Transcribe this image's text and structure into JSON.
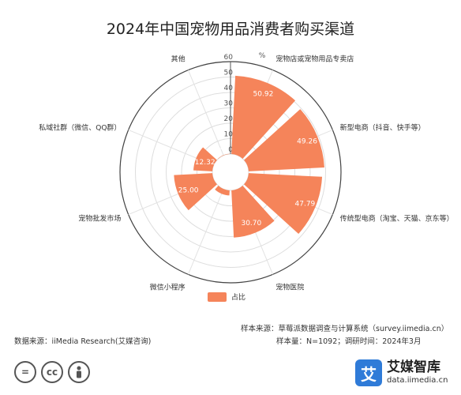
{
  "title": "2024年中国宠物用品消费者购买渠道",
  "chart_data": {
    "type": "polar-bar",
    "unit": "%",
    "categories": [
      "宠物店或宠物用品专卖店",
      "新型电商（抖音、快手等）",
      "传统型电商（淘宝、天猫、京东等）",
      "宠物医院",
      "微信小程序",
      "宠物批发市场",
      "私域社群（微信、QQ群）",
      "其他"
    ],
    "series": [
      {
        "name": "占比",
        "values": [
          50.92,
          49.26,
          47.79,
          30.7,
          3.31,
          25.0,
          12.32,
          0.18
        ]
      }
    ],
    "radial_ticks": [
      0,
      10,
      20,
      30,
      40,
      50,
      60
    ],
    "rmax": 60,
    "grid": true,
    "legend": "bottom-center",
    "bar_color": "#f5845a"
  },
  "footer": {
    "data_source": "数据来源：iiMedia Research(艾媒咨询)",
    "sample_source": "样本来源：草莓派数据调查与计算系统（survey.iimedia.cn）",
    "sample_size": "样本量：N=1092；调研时间：2024年3月"
  },
  "brand": {
    "name": "艾媒智库",
    "url": "data.iimedia.cn",
    "logo_char": "艾"
  },
  "license_icons": [
    "=",
    "cc",
    "person"
  ]
}
